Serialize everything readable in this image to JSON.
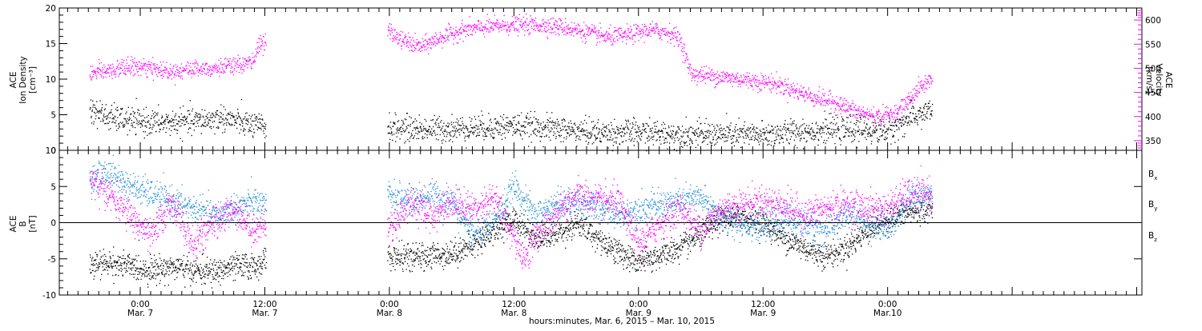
{
  "chart_data": [
    {
      "type": "scatter",
      "panel": "ion-density-and-velocity",
      "ylabel_left": [
        "ACE",
        "Ion Density",
        "[cm⁻³]"
      ],
      "ylabel_right": [
        "ACE",
        "Velocity",
        "[km/s]"
      ],
      "ylim_left": [
        0,
        20
      ],
      "left_ticks": [
        "0",
        "5",
        "10",
        "15",
        "20"
      ],
      "left_tick_values": [
        0,
        5,
        10,
        15,
        20
      ],
      "ylim_right": [
        330,
        625
      ],
      "right_ticks": [
        "350",
        "400",
        "450",
        "500",
        "550",
        "600"
      ],
      "right_tick_values": [
        350,
        400,
        450,
        500,
        550,
        600
      ],
      "x_unit": "hours since Mar. 6, 2015 00:00",
      "data_gap_hours": [
        36.2,
        47.7
      ],
      "series": [
        {
          "name": "Ion Density",
          "color": "#000000",
          "axis": "left",
          "points": [
            [
              19.1,
              5.8
            ],
            [
              21,
              4.6
            ],
            [
              23,
              4.2
            ],
            [
              26,
              3.9
            ],
            [
              29,
              4.1
            ],
            [
              32,
              4.6
            ],
            [
              35,
              3.5
            ],
            [
              36.1,
              3.3
            ],
            [
              47.8,
              3.2
            ],
            [
              52,
              3.0
            ],
            [
              56,
              3.2
            ],
            [
              60,
              3.5
            ],
            [
              64,
              3.1
            ],
            [
              68,
              2.5
            ],
            [
              72,
              2.6
            ],
            [
              76,
              2.3
            ],
            [
              80,
              2.3
            ],
            [
              84,
              2.2
            ],
            [
              88,
              2.8
            ],
            [
              92,
              3.0
            ],
            [
              96,
              2.8
            ],
            [
              98,
              4.5
            ],
            [
              100.3,
              5.8
            ]
          ]
        },
        {
          "name": "Velocity",
          "color": "#ff00ff",
          "axis": "right",
          "points": [
            [
              19.1,
              490
            ],
            [
              21,
              495
            ],
            [
              23,
              505
            ],
            [
              25,
              500
            ],
            [
              27,
              495
            ],
            [
              29,
              500
            ],
            [
              31,
              502
            ],
            [
              33,
              505
            ],
            [
              35,
              515
            ],
            [
              35.3,
              555
            ],
            [
              36.1,
              550
            ],
            [
              47.8,
              580
            ],
            [
              49,
              560
            ],
            [
              51,
              545
            ],
            [
              53,
              565
            ],
            [
              55,
              580
            ],
            [
              57,
              585
            ],
            [
              59,
              590
            ],
            [
              61,
              590
            ],
            [
              63,
              590
            ],
            [
              65,
              585
            ],
            [
              67,
              575
            ],
            [
              69,
              565
            ],
            [
              71,
              570
            ],
            [
              73,
              580
            ],
            [
              75,
              575
            ],
            [
              76,
              560
            ],
            [
              77,
              490
            ],
            [
              79,
              485
            ],
            [
              81,
              480
            ],
            [
              83,
              475
            ],
            [
              85,
              470
            ],
            [
              87,
              455
            ],
            [
              89,
              440
            ],
            [
              91,
              430
            ],
            [
              93,
              410
            ],
            [
              95,
              400
            ],
            [
              97,
              410
            ],
            [
              99,
              460
            ],
            [
              100.3,
              480
            ]
          ]
        }
      ]
    },
    {
      "type": "scatter",
      "panel": "magnetic-field",
      "ylabel_left": [
        "ACE",
        "B",
        "[nT]"
      ],
      "ylim": [
        -10,
        10
      ],
      "left_ticks": [
        "-10",
        "-5",
        "0",
        "5",
        "10"
      ],
      "left_tick_values": [
        -10,
        -5,
        0,
        5,
        10
      ],
      "zero_line": true,
      "x_unit": "hours since Mar. 6, 2015 00:00",
      "data_gap_hours": [
        36.2,
        47.7
      ],
      "series": [
        {
          "name": "Bx",
          "label_main": "B",
          "label_sub": "x",
          "color": "#000000",
          "points": [
            [
              19.1,
              -6.0
            ],
            [
              21,
              -5.5
            ],
            [
              23,
              -6.0
            ],
            [
              25,
              -6.5
            ],
            [
              27,
              -6.0
            ],
            [
              29,
              -6.5
            ],
            [
              31,
              -6.8
            ],
            [
              33,
              -6.0
            ],
            [
              35,
              -6.0
            ],
            [
              36.1,
              -5.0
            ],
            [
              47.8,
              -4.5
            ],
            [
              50,
              -4.8
            ],
            [
              52,
              -4.5
            ],
            [
              54,
              -4.2
            ],
            [
              56,
              -3.0
            ],
            [
              58,
              -1.0
            ],
            [
              60,
              0.5
            ],
            [
              62,
              -2.0
            ],
            [
              64,
              -1.5
            ],
            [
              66,
              0.0
            ],
            [
              68,
              -2.0
            ],
            [
              70,
              -4.0
            ],
            [
              72,
              -5.5
            ],
            [
              74,
              -4.5
            ],
            [
              76,
              -3.5
            ],
            [
              78,
              -1.5
            ],
            [
              80,
              0.5
            ],
            [
              82,
              1.0
            ],
            [
              84,
              0.0
            ],
            [
              86,
              -2.0
            ],
            [
              88,
              -3.5
            ],
            [
              90,
              -4.5
            ],
            [
              92,
              -3.5
            ],
            [
              94,
              -1.0
            ],
            [
              96,
              0.5
            ],
            [
              98,
              1.5
            ],
            [
              100.3,
              2.0
            ]
          ]
        },
        {
          "name": "By",
          "label_main": "B",
          "label_sub": "y",
          "color": "#1f8fd8",
          "points": [
            [
              19.1,
              6.0
            ],
            [
              21,
              7.0
            ],
            [
              23,
              5.0
            ],
            [
              25,
              4.0
            ],
            [
              27,
              3.0
            ],
            [
              29,
              2.0
            ],
            [
              31,
              1.0
            ],
            [
              33,
              2.0
            ],
            [
              35,
              3.0
            ],
            [
              36.1,
              2.0
            ],
            [
              47.8,
              4.0
            ],
            [
              50,
              3.0
            ],
            [
              52,
              4.0
            ],
            [
              54,
              3.0
            ],
            [
              56,
              -1.0
            ],
            [
              58,
              0.0
            ],
            [
              60,
              5.0
            ],
            [
              62,
              1.0
            ],
            [
              64,
              2.5
            ],
            [
              66,
              3.0
            ],
            [
              68,
              2.0
            ],
            [
              70,
              1.0
            ],
            [
              72,
              2.0
            ],
            [
              74,
              2.5
            ],
            [
              76,
              3.0
            ],
            [
              78,
              3.5
            ],
            [
              80,
              0.5
            ],
            [
              82,
              0.0
            ],
            [
              84,
              -0.5
            ],
            [
              86,
              0.5
            ],
            [
              88,
              0.0
            ],
            [
              90,
              -1.0
            ],
            [
              92,
              1.0
            ],
            [
              94,
              0.0
            ],
            [
              96,
              -1.0
            ],
            [
              98,
              3.5
            ],
            [
              100.3,
              4.0
            ]
          ]
        },
        {
          "name": "Bz",
          "label_main": "B",
          "label_sub": "z",
          "color": "#ff00ff",
          "points": [
            [
              19.1,
              6.0
            ],
            [
              21,
              4.0
            ],
            [
              23,
              1.0
            ],
            [
              25,
              -2.0
            ],
            [
              27,
              3.0
            ],
            [
              29,
              -3.0
            ],
            [
              31,
              0.0
            ],
            [
              33,
              2.0
            ],
            [
              35,
              -1.0
            ],
            [
              36.1,
              0.0
            ],
            [
              47.8,
              -1.0
            ],
            [
              50,
              3.0
            ],
            [
              52,
              1.0
            ],
            [
              54,
              3.0
            ],
            [
              56,
              2.0
            ],
            [
              58,
              3.5
            ],
            [
              60,
              -2.0
            ],
            [
              61,
              -5.0
            ],
            [
              62,
              -2.0
            ],
            [
              64,
              1.0
            ],
            [
              66,
              4.0
            ],
            [
              68,
              3.0
            ],
            [
              70,
              3.0
            ],
            [
              72,
              -3.0
            ],
            [
              74,
              0.0
            ],
            [
              76,
              2.0
            ],
            [
              78,
              -1.0
            ],
            [
              80,
              2.0
            ],
            [
              82,
              2.5
            ],
            [
              84,
              3.0
            ],
            [
              86,
              2.5
            ],
            [
              88,
              1.0
            ],
            [
              90,
              2.0
            ],
            [
              92,
              2.5
            ],
            [
              94,
              2.0
            ],
            [
              96,
              2.0
            ],
            [
              98,
              4.0
            ],
            [
              100.3,
              4.0
            ]
          ]
        }
      ]
    }
  ],
  "x_axis": {
    "range_hours": [
      16.2,
      120.5
    ],
    "major_ticks": [
      {
        "hour": 24,
        "time": "0:00",
        "date": "Mar. 7"
      },
      {
        "hour": 36,
        "time": "12:00",
        "date": "Mar. 7"
      },
      {
        "hour": 48,
        "time": "0:00",
        "date": "Mar. 8"
      },
      {
        "hour": 60,
        "time": "12:00",
        "date": "Mar. 8"
      },
      {
        "hour": 72,
        "time": "0:00",
        "date": "Mar. 9"
      },
      {
        "hour": 84,
        "time": "12:00",
        "date": "Mar. 9"
      },
      {
        "hour": 96,
        "time": "0:00",
        "date": "Mar.10"
      }
    ],
    "title": "hours:minutes, Mar.  6, 2015 – Mar. 10, 2015"
  },
  "colors": {
    "density": "#000000",
    "velocity": "#ff00ff",
    "bx": "#000000",
    "by": "#1f8fd8",
    "bz": "#ff00ff"
  }
}
